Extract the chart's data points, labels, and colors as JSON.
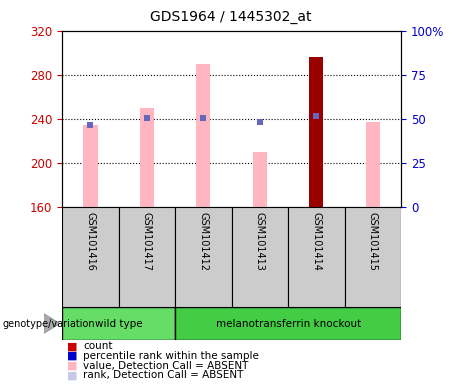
{
  "title": "GDS1964 / 1445302_at",
  "samples": [
    "GSM101416",
    "GSM101417",
    "GSM101412",
    "GSM101413",
    "GSM101414",
    "GSM101415"
  ],
  "group_configs": [
    {
      "name": "wild type",
      "indices": [
        0,
        1
      ],
      "color": "#66dd66"
    },
    {
      "name": "melanotransferrin knockout",
      "indices": [
        2,
        3,
        4,
        5
      ],
      "color": "#44cc44"
    }
  ],
  "pink_bar_values": [
    235,
    250,
    290,
    210,
    296,
    237
  ],
  "blue_dot_values": [
    235,
    241,
    241,
    237,
    243,
    null
  ],
  "red_bar_index": 4,
  "ylim_left": [
    160,
    320
  ],
  "ylim_right": [
    0,
    100
  ],
  "yticks_left": [
    160,
    200,
    240,
    280,
    320
  ],
  "yticks_right": [
    0,
    25,
    50,
    75,
    100
  ],
  "ytick_labels_right": [
    "0",
    "25",
    "50",
    "75",
    "100%"
  ],
  "bar_width": 0.25,
  "pink_color": "#ffb6c1",
  "blue_dot_color": "#6666bb",
  "red_color": "#990000",
  "left_tick_color": "#cc0000",
  "right_tick_color": "#0000cc",
  "label_area_color": "#cccccc",
  "legend_items": [
    {
      "color": "#cc0000",
      "label": "count"
    },
    {
      "color": "#0000cc",
      "label": "percentile rank within the sample"
    },
    {
      "color": "#ffb6c1",
      "label": "value, Detection Call = ABSENT"
    },
    {
      "color": "#c8c8e8",
      "label": "rank, Detection Call = ABSENT"
    }
  ]
}
